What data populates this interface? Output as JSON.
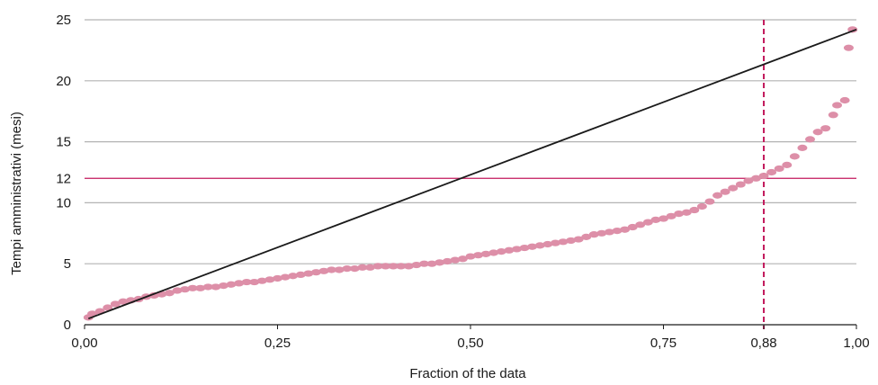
{
  "chart_data": {
    "type": "scatter",
    "xlabel": "Fraction of the data",
    "ylabel": "Tempi amministrativi (mesi)",
    "xlim": [
      0,
      1
    ],
    "ylim": [
      0,
      25
    ],
    "x_ticks": [
      {
        "value": 0,
        "label": "0,00"
      },
      {
        "value": 0.25,
        "label": "0,25"
      },
      {
        "value": 0.5,
        "label": "0,50"
      },
      {
        "value": 0.75,
        "label": "0,75"
      },
      {
        "value": 0.88,
        "label": "0,88",
        "highlight": true
      },
      {
        "value": 1,
        "label": "1,00"
      }
    ],
    "y_ticks": [
      {
        "value": 0,
        "label": "0"
      },
      {
        "value": 5,
        "label": "5"
      },
      {
        "value": 10,
        "label": "10"
      },
      {
        "value": 12,
        "label": "12",
        "highlight": true
      },
      {
        "value": 15,
        "label": "15"
      },
      {
        "value": 20,
        "label": "20"
      },
      {
        "value": 25,
        "label": "25"
      }
    ],
    "grid": "horizontal",
    "series": [
      {
        "kind": "scatter",
        "color": "#dd8fa8",
        "points": [
          [
            0.005,
            0.6
          ],
          [
            0.01,
            0.9
          ],
          [
            0.02,
            1.1
          ],
          [
            0.03,
            1.4
          ],
          [
            0.04,
            1.7
          ],
          [
            0.05,
            1.9
          ],
          [
            0.06,
            2.0
          ],
          [
            0.07,
            2.1
          ],
          [
            0.08,
            2.3
          ],
          [
            0.09,
            2.4
          ],
          [
            0.1,
            2.5
          ],
          [
            0.11,
            2.6
          ],
          [
            0.12,
            2.8
          ],
          [
            0.13,
            2.9
          ],
          [
            0.14,
            3.0
          ],
          [
            0.15,
            3.0
          ],
          [
            0.16,
            3.1
          ],
          [
            0.17,
            3.1
          ],
          [
            0.18,
            3.2
          ],
          [
            0.19,
            3.3
          ],
          [
            0.2,
            3.4
          ],
          [
            0.21,
            3.5
          ],
          [
            0.22,
            3.5
          ],
          [
            0.23,
            3.6
          ],
          [
            0.24,
            3.7
          ],
          [
            0.25,
            3.8
          ],
          [
            0.26,
            3.9
          ],
          [
            0.27,
            4.0
          ],
          [
            0.28,
            4.1
          ],
          [
            0.29,
            4.2
          ],
          [
            0.3,
            4.3
          ],
          [
            0.31,
            4.4
          ],
          [
            0.32,
            4.5
          ],
          [
            0.33,
            4.5
          ],
          [
            0.34,
            4.6
          ],
          [
            0.35,
            4.6
          ],
          [
            0.36,
            4.7
          ],
          [
            0.37,
            4.7
          ],
          [
            0.38,
            4.8
          ],
          [
            0.39,
            4.8
          ],
          [
            0.4,
            4.8
          ],
          [
            0.41,
            4.8
          ],
          [
            0.42,
            4.8
          ],
          [
            0.43,
            4.9
          ],
          [
            0.44,
            5.0
          ],
          [
            0.45,
            5.0
          ],
          [
            0.46,
            5.1
          ],
          [
            0.47,
            5.2
          ],
          [
            0.48,
            5.3
          ],
          [
            0.49,
            5.4
          ],
          [
            0.5,
            5.6
          ],
          [
            0.51,
            5.7
          ],
          [
            0.52,
            5.8
          ],
          [
            0.53,
            5.9
          ],
          [
            0.54,
            6.0
          ],
          [
            0.55,
            6.1
          ],
          [
            0.56,
            6.2
          ],
          [
            0.57,
            6.3
          ],
          [
            0.58,
            6.4
          ],
          [
            0.59,
            6.5
          ],
          [
            0.6,
            6.6
          ],
          [
            0.61,
            6.7
          ],
          [
            0.62,
            6.8
          ],
          [
            0.63,
            6.9
          ],
          [
            0.64,
            7.0
          ],
          [
            0.65,
            7.2
          ],
          [
            0.66,
            7.4
          ],
          [
            0.67,
            7.5
          ],
          [
            0.68,
            7.6
          ],
          [
            0.69,
            7.7
          ],
          [
            0.7,
            7.8
          ],
          [
            0.71,
            8.0
          ],
          [
            0.72,
            8.2
          ],
          [
            0.73,
            8.4
          ],
          [
            0.74,
            8.6
          ],
          [
            0.75,
            8.7
          ],
          [
            0.76,
            8.9
          ],
          [
            0.77,
            9.1
          ],
          [
            0.78,
            9.2
          ],
          [
            0.79,
            9.4
          ],
          [
            0.8,
            9.7
          ],
          [
            0.81,
            10.1
          ],
          [
            0.82,
            10.6
          ],
          [
            0.83,
            10.9
          ],
          [
            0.84,
            11.2
          ],
          [
            0.85,
            11.5
          ],
          [
            0.86,
            11.8
          ],
          [
            0.87,
            12.0
          ],
          [
            0.88,
            12.2
          ],
          [
            0.89,
            12.5
          ],
          [
            0.9,
            12.8
          ],
          [
            0.91,
            13.1
          ],
          [
            0.92,
            13.8
          ],
          [
            0.93,
            14.5
          ],
          [
            0.94,
            15.2
          ],
          [
            0.95,
            15.8
          ],
          [
            0.96,
            16.1
          ],
          [
            0.97,
            17.2
          ],
          [
            0.975,
            18.0
          ],
          [
            0.985,
            18.4
          ],
          [
            0.99,
            22.7
          ],
          [
            0.995,
            24.2
          ]
        ]
      },
      {
        "kind": "line",
        "color": "#1a1a1a",
        "points": [
          [
            0.005,
            0.5
          ],
          [
            1.0,
            24.2
          ]
        ]
      }
    ],
    "reference_lines": [
      {
        "axis": "y",
        "value": 12,
        "color": "#c2185b",
        "style": "solid"
      },
      {
        "axis": "x",
        "value": 0.88,
        "color": "#c2185b",
        "style": "dashed"
      }
    ]
  }
}
